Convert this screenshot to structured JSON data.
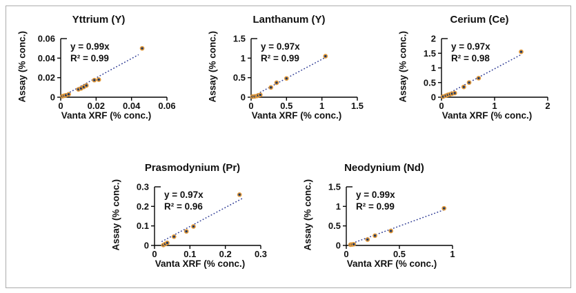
{
  "figure": {
    "background": "#ffffff",
    "border_color": "#ababab"
  },
  "styles": {
    "marker_fill": "#1f3864",
    "marker_ring": "#e29a3c",
    "trend_color": "#2d3a94",
    "axis_color": "#000000",
    "text_color": "#111111"
  },
  "chart_data": [
    {
      "type": "scatter",
      "title": "Yttrium (Y)",
      "equation": "y = 0.99x",
      "r_squared": "R² = 0.99",
      "xlabel": "Vanta XRF (% conc.)",
      "ylabel": "Assay (% conc.)",
      "xlim": [
        0,
        0.06
      ],
      "ylim": [
        0,
        0.06
      ],
      "xticks": [
        0,
        0.02,
        0.04,
        0.06
      ],
      "xtick_labels": [
        "0",
        "0.02",
        "0.04",
        "0.06"
      ],
      "yticks": [
        0,
        0.02,
        0.04,
        0.06
      ],
      "ytick_labels": [
        "0",
        "0.02",
        "0.04",
        "0.06"
      ],
      "grid": false,
      "legend": null,
      "points": [
        [
          0.001,
          0.001
        ],
        [
          0.002,
          0.0015
        ],
        [
          0.003,
          0.002
        ],
        [
          0.0045,
          0.003
        ],
        [
          0.01,
          0.008
        ],
        [
          0.0115,
          0.009
        ],
        [
          0.013,
          0.0105
        ],
        [
          0.0145,
          0.012
        ],
        [
          0.019,
          0.0175
        ],
        [
          0.0215,
          0.018
        ],
        [
          0.046,
          0.05
        ]
      ],
      "trend": {
        "slope": 0.99,
        "intercept": 0,
        "x_start": 0.0005,
        "x_end": 0.044
      }
    },
    {
      "type": "scatter",
      "title": "Lanthanum (Y)",
      "equation": "y = 0.97x",
      "r_squared": "R² = 0.99",
      "xlabel": "Vanta XRF (% conc.)",
      "ylabel": "Assay (% conc.)",
      "xlim": [
        0,
        1.5
      ],
      "ylim": [
        0,
        1.5
      ],
      "xticks": [
        0,
        0.5,
        1,
        1.5
      ],
      "xtick_labels": [
        "0",
        "0.5",
        "1",
        "1.5"
      ],
      "yticks": [
        0,
        0.5,
        1,
        1.5
      ],
      "ytick_labels": [
        "0",
        "0.5",
        "1",
        "1.5"
      ],
      "grid": false,
      "legend": null,
      "points": [
        [
          0.02,
          0.015
        ],
        [
          0.05,
          0.02
        ],
        [
          0.08,
          0.03
        ],
        [
          0.1,
          0.045
        ],
        [
          0.13,
          0.06
        ],
        [
          0.28,
          0.25
        ],
        [
          0.36,
          0.37
        ],
        [
          0.5,
          0.48
        ],
        [
          1.05,
          1.05
        ]
      ],
      "trend": {
        "slope": 0.97,
        "intercept": 0,
        "x_start": 0.01,
        "x_end": 1.06
      }
    },
    {
      "type": "scatter",
      "title": "Cerium (Ce)",
      "equation": "y = 0.97x",
      "r_squared": "R² = 0.98",
      "xlabel": "Vanta XRF (% conc.)",
      "ylabel": "Assay (% conc.)",
      "xlim": [
        0,
        2
      ],
      "ylim": [
        0,
        2
      ],
      "xticks": [
        0,
        1,
        2
      ],
      "xtick_labels": [
        "0",
        "1",
        "2"
      ],
      "yticks": [
        0,
        0.5,
        1,
        1.5,
        2
      ],
      "ytick_labels": [
        "0",
        "0.5",
        "1",
        "1.5",
        "2"
      ],
      "grid": false,
      "legend": null,
      "points": [
        [
          0.03,
          0.02
        ],
        [
          0.08,
          0.05
        ],
        [
          0.12,
          0.08
        ],
        [
          0.16,
          0.1
        ],
        [
          0.2,
          0.12
        ],
        [
          0.25,
          0.14
        ],
        [
          0.42,
          0.35
        ],
        [
          0.52,
          0.5
        ],
        [
          0.7,
          0.65
        ],
        [
          1.5,
          1.55
        ]
      ],
      "trend": {
        "slope": 0.97,
        "intercept": 0,
        "x_start": 0.02,
        "x_end": 1.49
      }
    },
    {
      "type": "scatter",
      "title": "Prasmodynium (Pr)",
      "equation": "y = 0.97x",
      "r_squared": "R² = 0.96",
      "xlabel": "Vanta XRF (% conc.)",
      "ylabel": "Assay (% conc.)",
      "xlim": [
        0,
        0.3
      ],
      "ylim": [
        0,
        0.3
      ],
      "xticks": [
        0,
        0.1,
        0.2,
        0.3
      ],
      "xtick_labels": [
        "0",
        "0.1",
        "0.2",
        "0.3"
      ],
      "yticks": [
        0,
        0.1,
        0.2,
        0.3
      ],
      "ytick_labels": [
        "0",
        "0.1",
        "0.2",
        "0.3"
      ],
      "grid": false,
      "legend": null,
      "points": [
        [
          0.025,
          0.002
        ],
        [
          0.03,
          0.007
        ],
        [
          0.036,
          0.013
        ],
        [
          0.055,
          0.045
        ],
        [
          0.09,
          0.072
        ],
        [
          0.11,
          0.097
        ],
        [
          0.24,
          0.26
        ]
      ],
      "trend": {
        "slope": 0.97,
        "intercept": 0,
        "x_start": 0.02,
        "x_end": 0.25
      }
    },
    {
      "type": "scatter",
      "title": "Neodynium (Nd)",
      "equation": "y = 0.99x",
      "r_squared": "R² = 0.99",
      "xlabel": "Vanta XRF (% conc.)",
      "ylabel": "Assay (% conc.)",
      "xlim": [
        0,
        1
      ],
      "ylim": [
        0,
        1.5
      ],
      "xticks": [
        0,
        0.5,
        1
      ],
      "xtick_labels": [
        "0",
        "0.5",
        "1"
      ],
      "yticks": [
        0,
        0.5,
        1,
        1.5
      ],
      "ytick_labels": [
        "0",
        "0.5",
        "1",
        "1.5"
      ],
      "grid": false,
      "legend": null,
      "points": [
        [
          0.04,
          0.02
        ],
        [
          0.055,
          0.025
        ],
        [
          0.07,
          0.03
        ],
        [
          0.2,
          0.15
        ],
        [
          0.27,
          0.25
        ],
        [
          0.42,
          0.37
        ],
        [
          0.92,
          0.95
        ]
      ],
      "trend": {
        "slope": 0.99,
        "intercept": 0,
        "x_start": 0.03,
        "x_end": 0.93
      }
    }
  ]
}
